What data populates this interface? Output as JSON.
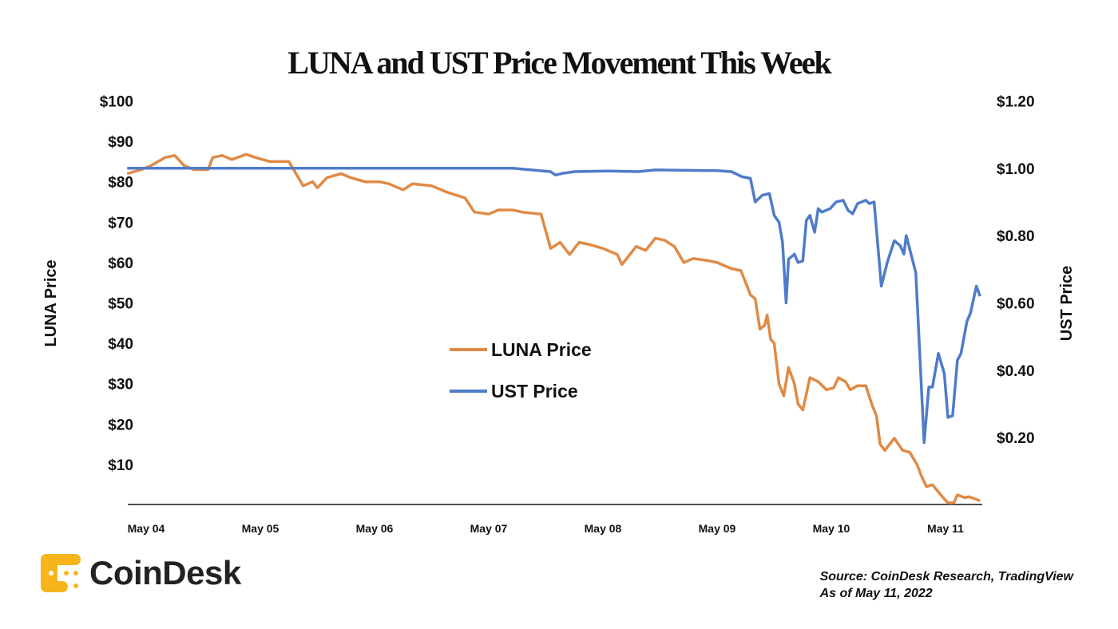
{
  "chart_data": {
    "type": "line",
    "title": "LUNA and UST Price Movement This Week",
    "x_tick_labels": [
      "May 04",
      "May 05",
      "May 06",
      "May 07",
      "May 08",
      "May 09",
      "May 10",
      "May 11"
    ],
    "y_left": {
      "label": "LUNA Price",
      "ticks": [
        10,
        20,
        30,
        40,
        50,
        60,
        70,
        80,
        90,
        100
      ],
      "tick_labels": [
        "$10",
        "$20",
        "$30",
        "$40",
        "$50",
        "$60",
        "$70",
        "$80",
        "$90",
        "$100"
      ],
      "range": [
        0,
        100
      ]
    },
    "y_right": {
      "label": "UST Price",
      "ticks": [
        0.2,
        0.4,
        0.6,
        0.8,
        1.0,
        1.2
      ],
      "tick_labels": [
        "$0.20",
        "$0.40",
        "$0.60",
        "$0.80",
        "$1.00",
        "$1.20"
      ],
      "range": [
        0,
        1.2
      ]
    },
    "grid": false,
    "legend_position": "center",
    "series": [
      {
        "name": "LUNA Price",
        "axis": "left",
        "color": "#e08a45",
        "points": [
          [
            "2022-05-03T20:00",
            82
          ],
          [
            "2022-05-03T23:00",
            83
          ],
          [
            "2022-05-04T01:00",
            84
          ],
          [
            "2022-05-04T04:00",
            86
          ],
          [
            "2022-05-04T06:00",
            86.5
          ],
          [
            "2022-05-04T08:00",
            84
          ],
          [
            "2022-05-04T10:00",
            83
          ],
          [
            "2022-05-04T13:00",
            83
          ],
          [
            "2022-05-04T14:00",
            86
          ],
          [
            "2022-05-04T16:00",
            86.5
          ],
          [
            "2022-05-04T18:00",
            85.5
          ],
          [
            "2022-05-04T21:00",
            86.8
          ],
          [
            "2022-05-04T23:00",
            86
          ],
          [
            "2022-05-05T02:00",
            85
          ],
          [
            "2022-05-05T06:00",
            85
          ],
          [
            "2022-05-05T09:00",
            79
          ],
          [
            "2022-05-05T11:00",
            80
          ],
          [
            "2022-05-05T12:00",
            78.5
          ],
          [
            "2022-05-05T14:00",
            81
          ],
          [
            "2022-05-05T17:00",
            82
          ],
          [
            "2022-05-05T19:00",
            81
          ],
          [
            "2022-05-05T22:00",
            80
          ],
          [
            "2022-05-06T01:00",
            80
          ],
          [
            "2022-05-06T03:00",
            79.5
          ],
          [
            "2022-05-06T06:00",
            78
          ],
          [
            "2022-05-06T08:00",
            79.5
          ],
          [
            "2022-05-06T12:00",
            79
          ],
          [
            "2022-05-06T15:00",
            77.5
          ],
          [
            "2022-05-06T19:00",
            76
          ],
          [
            "2022-05-06T21:00",
            72.5
          ],
          [
            "2022-05-07T00:00",
            72
          ],
          [
            "2022-05-07T02:00",
            73
          ],
          [
            "2022-05-07T05:00",
            73
          ],
          [
            "2022-05-07T07:00",
            72.5
          ],
          [
            "2022-05-07T11:00",
            72
          ],
          [
            "2022-05-07T13:00",
            63.5
          ],
          [
            "2022-05-07T15:00",
            65
          ],
          [
            "2022-05-07T17:00",
            62
          ],
          [
            "2022-05-07T19:00",
            65
          ],
          [
            "2022-05-07T21:00",
            64.5
          ],
          [
            "2022-05-08T00:00",
            63.5
          ],
          [
            "2022-05-08T03:00",
            62
          ],
          [
            "2022-05-08T04:00",
            59.5
          ],
          [
            "2022-05-08T07:00",
            64
          ],
          [
            "2022-05-08T09:00",
            63
          ],
          [
            "2022-05-08T11:00",
            66
          ],
          [
            "2022-05-08T13:00",
            65.5
          ],
          [
            "2022-05-08T15:00",
            64
          ],
          [
            "2022-05-08T17:00",
            60
          ],
          [
            "2022-05-08T19:00",
            61
          ],
          [
            "2022-05-08T22:00",
            60.5
          ],
          [
            "2022-05-09T00:00",
            60
          ],
          [
            "2022-05-09T03:00",
            58.5
          ],
          [
            "2022-05-09T05:00",
            58
          ],
          [
            "2022-05-09T06:00",
            55
          ],
          [
            "2022-05-09T07:00",
            52
          ],
          [
            "2022-05-09T08:00",
            51
          ],
          [
            "2022-05-09T09:00",
            43.5
          ],
          [
            "2022-05-09T10:00",
            44.5
          ],
          [
            "2022-05-09T10:30",
            47
          ],
          [
            "2022-05-09T11:15",
            41
          ],
          [
            "2022-05-09T12:00",
            40
          ],
          [
            "2022-05-09T13:00",
            30
          ],
          [
            "2022-05-09T14:00",
            27
          ],
          [
            "2022-05-09T15:00",
            34
          ],
          [
            "2022-05-09T16:15",
            30
          ],
          [
            "2022-05-09T17:00",
            25
          ],
          [
            "2022-05-09T18:00",
            23.5
          ],
          [
            "2022-05-09T19:30",
            31.5
          ],
          [
            "2022-05-09T21:15",
            30.5
          ],
          [
            "2022-05-09T23:00",
            28.5
          ],
          [
            "2022-05-10T00:30",
            29
          ],
          [
            "2022-05-10T01:30",
            31.5
          ],
          [
            "2022-05-10T03:00",
            30.5
          ],
          [
            "2022-05-10T04:00",
            28.5
          ],
          [
            "2022-05-10T05:30",
            29.5
          ],
          [
            "2022-05-10T07:15",
            29.5
          ],
          [
            "2022-05-10T08:30",
            25
          ],
          [
            "2022-05-10T09:30",
            22
          ],
          [
            "2022-05-10T10:15",
            15
          ],
          [
            "2022-05-10T11:15",
            13.5
          ],
          [
            "2022-05-10T13:15",
            16.5
          ],
          [
            "2022-05-10T15:00",
            13.5
          ],
          [
            "2022-05-10T16:30",
            13
          ],
          [
            "2022-05-10T18:00",
            10
          ],
          [
            "2022-05-10T19:00",
            7
          ],
          [
            "2022-05-10T20:00",
            4.5
          ],
          [
            "2022-05-10T21:15",
            5
          ],
          [
            "2022-05-10T23:00",
            2.5
          ],
          [
            "2022-05-11T00:30",
            0.5
          ],
          [
            "2022-05-11T01:45",
            0.5
          ],
          [
            "2022-05-11T02:30",
            2.5
          ],
          [
            "2022-05-11T04:00",
            1.8
          ],
          [
            "2022-05-11T05:00",
            2
          ],
          [
            "2022-05-11T07:15",
            1
          ]
        ]
      },
      {
        "name": "UST Price",
        "axis": "right",
        "color": "#4f7cc9",
        "points": [
          [
            "2022-05-03T20:00",
            1.0
          ],
          [
            "2022-05-07T05:00",
            1.0
          ],
          [
            "2022-05-07T09:00",
            0.995
          ],
          [
            "2022-05-07T13:00",
            0.99
          ],
          [
            "2022-05-07T14:00",
            0.98
          ],
          [
            "2022-05-07T15:30",
            0.985
          ],
          [
            "2022-05-07T18:00",
            0.99
          ],
          [
            "2022-05-08T01:00",
            0.992
          ],
          [
            "2022-05-08T07:30",
            0.99
          ],
          [
            "2022-05-08T11:00",
            0.995
          ],
          [
            "2022-05-09T00:00",
            0.993
          ],
          [
            "2022-05-09T03:00",
            0.99
          ],
          [
            "2022-05-09T05:15",
            0.975
          ],
          [
            "2022-05-09T07:00",
            0.97
          ],
          [
            "2022-05-09T08:00",
            0.9
          ],
          [
            "2022-05-09T09:30",
            0.92
          ],
          [
            "2022-05-09T11:00",
            0.925
          ],
          [
            "2022-05-09T12:00",
            0.86
          ],
          [
            "2022-05-09T13:00",
            0.84
          ],
          [
            "2022-05-09T13:45",
            0.78
          ],
          [
            "2022-05-09T14:30",
            0.6
          ],
          [
            "2022-05-09T15:00",
            0.73
          ],
          [
            "2022-05-09T16:15",
            0.745
          ],
          [
            "2022-05-09T17:00",
            0.72
          ],
          [
            "2022-05-09T18:00",
            0.725
          ],
          [
            "2022-05-09T18:45",
            0.845
          ],
          [
            "2022-05-09T19:30",
            0.86
          ],
          [
            "2022-05-09T20:30",
            0.81
          ],
          [
            "2022-05-09T21:15",
            0.88
          ],
          [
            "2022-05-09T22:00",
            0.87
          ],
          [
            "2022-05-09T23:45",
            0.88
          ],
          [
            "2022-05-10T01:00",
            0.9
          ],
          [
            "2022-05-10T02:30",
            0.905
          ],
          [
            "2022-05-10T03:30",
            0.875
          ],
          [
            "2022-05-10T04:30",
            0.865
          ],
          [
            "2022-05-10T05:30",
            0.895
          ],
          [
            "2022-05-10T07:15",
            0.905
          ],
          [
            "2022-05-10T08:00",
            0.895
          ],
          [
            "2022-05-10T09:00",
            0.9
          ],
          [
            "2022-05-10T10:30",
            0.65
          ],
          [
            "2022-05-10T11:45",
            0.72
          ],
          [
            "2022-05-10T13:15",
            0.785
          ],
          [
            "2022-05-10T14:30",
            0.77
          ],
          [
            "2022-05-10T15:15",
            0.745
          ],
          [
            "2022-05-10T15:45",
            0.8
          ],
          [
            "2022-05-10T17:45",
            0.69
          ],
          [
            "2022-05-10T19:30",
            0.185
          ],
          [
            "2022-05-10T20:30",
            0.35
          ],
          [
            "2022-05-10T21:15",
            0.35
          ],
          [
            "2022-05-10T22:30",
            0.45
          ],
          [
            "2022-05-10T23:45",
            0.39
          ],
          [
            "2022-05-11T00:30",
            0.26
          ],
          [
            "2022-05-11T01:30",
            0.265
          ],
          [
            "2022-05-11T02:30",
            0.43
          ],
          [
            "2022-05-11T03:15",
            0.45
          ],
          [
            "2022-05-11T04:30",
            0.545
          ],
          [
            "2022-05-11T05:15",
            0.57
          ],
          [
            "2022-05-11T06:30",
            0.65
          ],
          [
            "2022-05-11T07:15",
            0.62
          ]
        ]
      }
    ]
  },
  "logo": {
    "text": "CoinDesk",
    "color": "#f7b51c"
  },
  "source": {
    "line1": "Source: CoinDesk Research, TradingView",
    "line2": "As of May 11, 2022"
  }
}
